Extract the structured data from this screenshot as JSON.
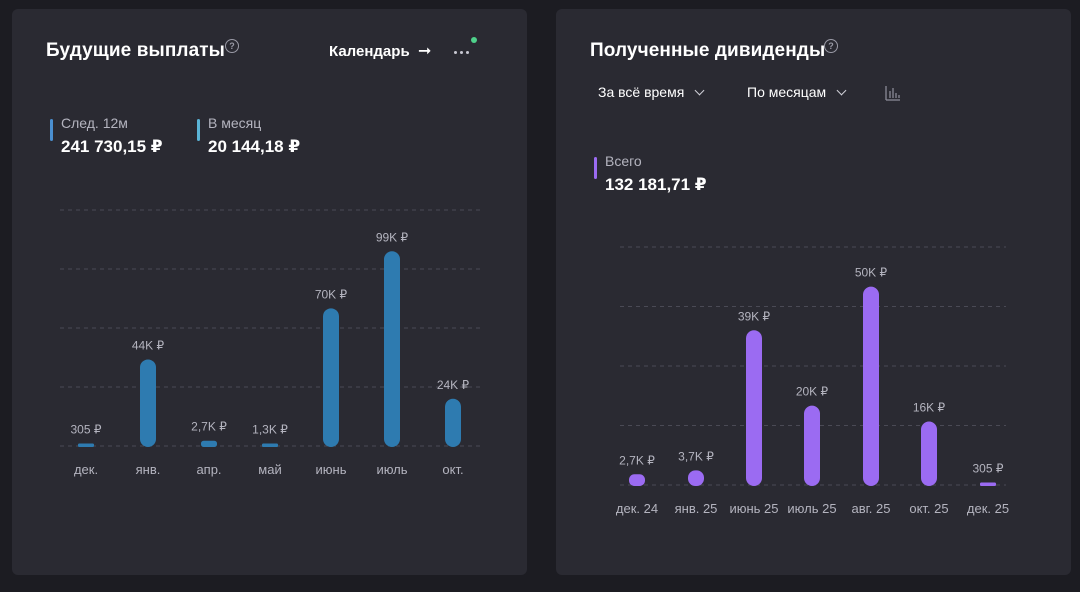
{
  "left_card": {
    "title": "Будущие выплаты",
    "help_icon": "question-circle-icon",
    "calendar_link": "Календарь",
    "arrow_icon": "arrow-right-icon",
    "more_icon": "more-horizontal-icon",
    "stats": [
      {
        "label": "След. 12м",
        "value": "241 730,15 ₽",
        "color": "#4a8fd0"
      },
      {
        "label": "В месяц",
        "value": "20 144,18 ₽",
        "color": "#5bb4d6"
      }
    ]
  },
  "right_card": {
    "title": "Полученные дивиденды",
    "help_icon": "question-circle-icon",
    "period_dropdown": "За всё время",
    "grouping_dropdown": "По месяцам",
    "chart_type_icon": "bar-chart-icon",
    "total": {
      "label": "Всего",
      "value": "132 181,71 ₽",
      "color": "#9b6bf2"
    }
  },
  "chart_data": [
    {
      "type": "bar",
      "title": "Будущие выплаты",
      "categories": [
        "дек.",
        "янв.",
        "апр.",
        "май",
        "июнь",
        "июль",
        "окт."
      ],
      "values": [
        305,
        44000,
        2700,
        1300,
        70000,
        99000,
        24000
      ],
      "data_labels": [
        "305 ₽",
        "44K ₽",
        "2,7K ₽",
        "1,3K ₽",
        "70K ₽",
        "99K ₽",
        "24K ₽"
      ],
      "ylim": [
        0,
        120000
      ],
      "grid": true,
      "bar_color": "#2e7bb0"
    },
    {
      "type": "bar",
      "title": "Полученные дивиденды",
      "categories": [
        "дек. 24",
        "янв. 25",
        "июнь 25",
        "июль 25",
        "авг. 25",
        "окт. 25",
        "дек. 25"
      ],
      "values": [
        2700,
        3700,
        39000,
        20000,
        50000,
        16000,
        305
      ],
      "data_labels": [
        "2,7K ₽",
        "3,7K ₽",
        "39K ₽",
        "20K ₽",
        "50K ₽",
        "16K ₽",
        "305 ₽"
      ],
      "ylim": [
        0,
        60000
      ],
      "grid": true,
      "bar_color": "#9b6bf2"
    }
  ]
}
